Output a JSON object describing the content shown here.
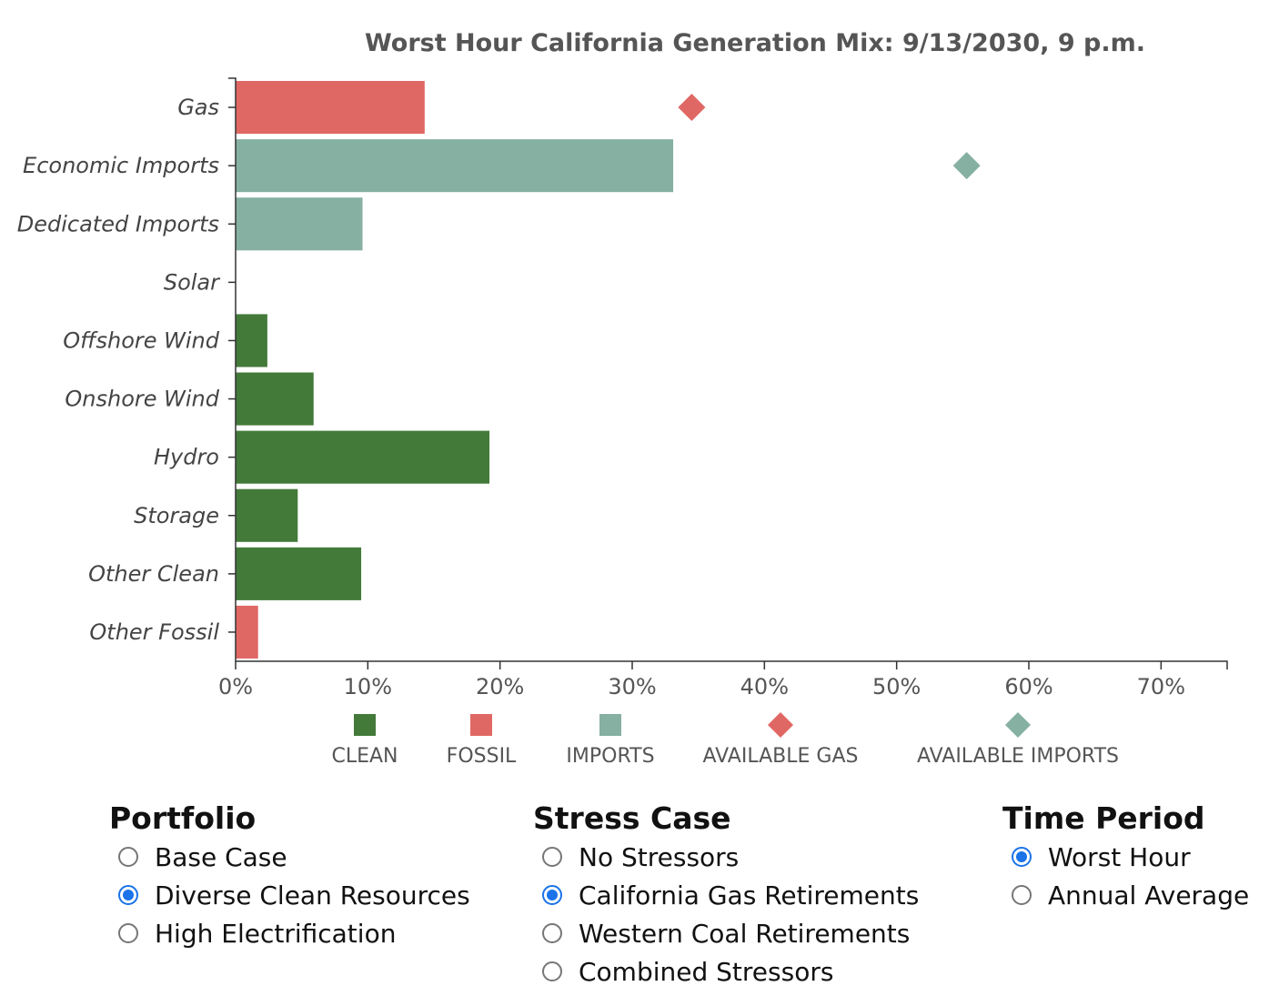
{
  "chart_data": {
    "type": "bar",
    "orientation": "horizontal",
    "title": "Worst Hour California Generation Mix: 9/13/2030, 9 p.m.",
    "categories": [
      "Gas",
      "Economic Imports",
      "Dedicated Imports",
      "Solar",
      "Offshore Wind",
      "Onshore Wind",
      "Hydro",
      "Storage",
      "Other Clean",
      "Other Fossil"
    ],
    "values": [
      14.3,
      33.1,
      9.6,
      0,
      2.4,
      5.9,
      19.2,
      4.7,
      9.5,
      1.7
    ],
    "bar_groups": [
      "fossil",
      "imports",
      "imports",
      "clean",
      "clean",
      "clean",
      "clean",
      "clean",
      "clean",
      "fossil"
    ],
    "available_markers": [
      {
        "category": "Gas",
        "value": 34.5,
        "group": "available_gas"
      },
      {
        "category": "Economic Imports",
        "value": 55.3,
        "group": "available_imports"
      }
    ],
    "xlim": [
      0,
      75
    ],
    "xticks": [
      0,
      10,
      20,
      30,
      40,
      50,
      60,
      70
    ],
    "xtick_labels": [
      "0%",
      "10%",
      "20%",
      "30%",
      "40%",
      "50%",
      "60%",
      "70%"
    ],
    "xlabel": "",
    "ylabel": "",
    "grid": false,
    "legend_placement": "bottom",
    "legend": [
      {
        "key": "clean",
        "label": "CLEAN",
        "shape": "square"
      },
      {
        "key": "fossil",
        "label": "FOSSIL",
        "shape": "square"
      },
      {
        "key": "imports",
        "label": "IMPORTS",
        "shape": "square"
      },
      {
        "key": "available_gas",
        "label": "AVAILABLE GAS",
        "shape": "diamond"
      },
      {
        "key": "available_imports",
        "label": "AVAILABLE IMPORTS",
        "shape": "diamond"
      }
    ],
    "colors": {
      "clean": "#437a3a",
      "fossil": "#e06864",
      "imports": "#85b0a2",
      "available_gas": "#e06864",
      "available_imports": "#85b0a2"
    }
  },
  "controls": {
    "portfolio": {
      "title": "Portfolio",
      "options": [
        {
          "label": "Base Case",
          "selected": false
        },
        {
          "label": "Diverse Clean Resources",
          "selected": true
        },
        {
          "label": "High Electrification",
          "selected": false
        }
      ]
    },
    "stress_case": {
      "title": "Stress Case",
      "options": [
        {
          "label": "No Stressors",
          "selected": false
        },
        {
          "label": "California Gas Retirements",
          "selected": true
        },
        {
          "label": "Western Coal Retirements",
          "selected": false
        },
        {
          "label": "Combined Stressors",
          "selected": false
        }
      ]
    },
    "time_period": {
      "title": "Time Period",
      "options": [
        {
          "label": "Worst Hour",
          "selected": true
        },
        {
          "label": "Annual Average",
          "selected": false
        }
      ]
    }
  }
}
